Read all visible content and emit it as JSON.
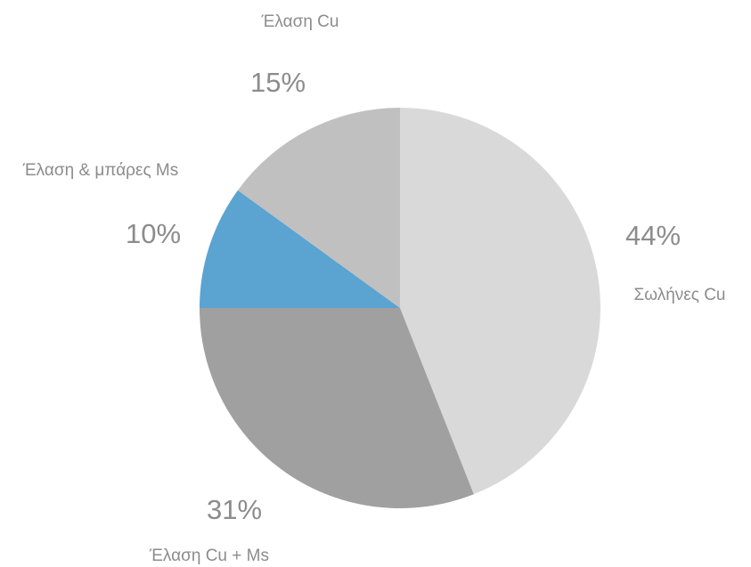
{
  "chart_data": {
    "type": "pie",
    "categories": [
      "Σωλήνες Cu",
      "Έλαση Cu + Ms",
      "Έλαση & μπάρες Ms",
      "Έλαση Cu"
    ],
    "values": [
      44,
      31,
      10,
      15
    ],
    "value_labels": [
      "44%",
      "31%",
      "10%",
      "15%"
    ],
    "colors": [
      "#d9d9d9",
      "#a0a0a0",
      "#5ba3d0",
      "#c0c0c0"
    ]
  }
}
